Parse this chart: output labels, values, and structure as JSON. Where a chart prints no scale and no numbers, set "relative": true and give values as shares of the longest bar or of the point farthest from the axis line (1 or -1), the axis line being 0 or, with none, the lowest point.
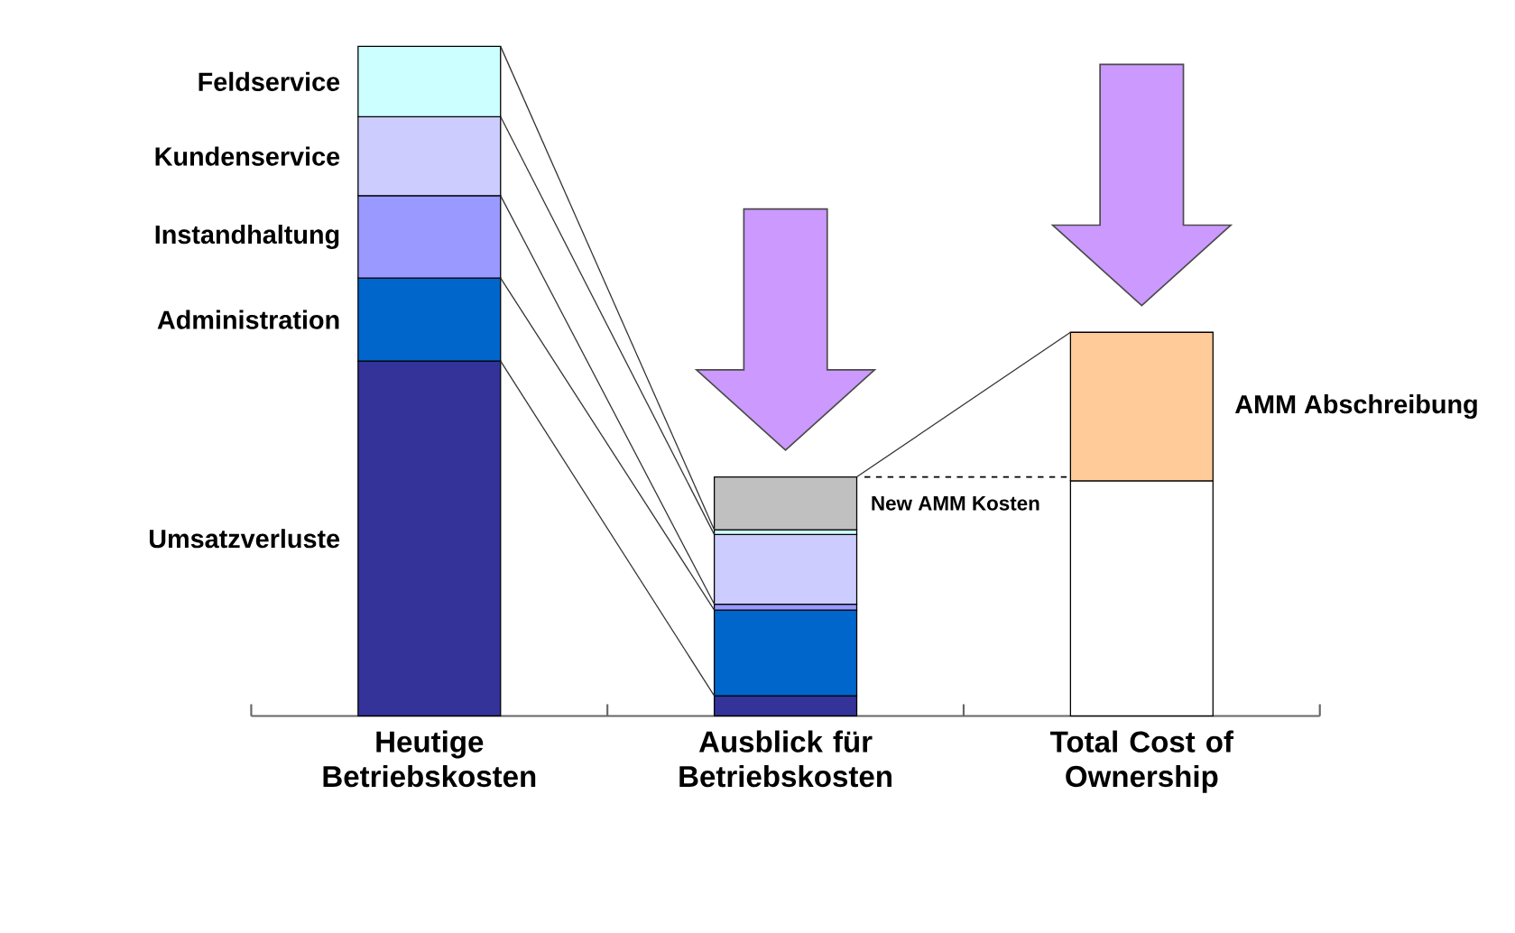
{
  "chart_data": {
    "type": "bar",
    "stacked": true,
    "relative": true,
    "categories": [
      "Heutige Betriebskosten",
      "Ausblick für Betriebskosten",
      "Total Cost of Ownership"
    ],
    "series": [
      {
        "name": "Umsatzverluste",
        "color": "#333399",
        "values": [
          0.53,
          0.03,
          null
        ]
      },
      {
        "name": "Administration",
        "color": "#0066cc",
        "values": [
          0.124,
          0.128,
          null
        ]
      },
      {
        "name": "Instandhaltung",
        "color": "#9999ff",
        "values": [
          0.123,
          0.009,
          null
        ]
      },
      {
        "name": "Kundenservice",
        "color": "#ccccff",
        "values": [
          0.118,
          0.104,
          null
        ]
      },
      {
        "name": "Feldservice",
        "color": "#ccffff",
        "values": [
          0.105,
          0.007,
          null
        ]
      },
      {
        "name": "New AMM Kosten",
        "color": "#c0c0c0",
        "values": [
          null,
          0.079,
          null
        ]
      },
      {
        "color": "#ffffff",
        "values": [
          null,
          null,
          0.351
        ]
      },
      {
        "name": "AMM Abschreibung",
        "color": "#ffcc99",
        "values": [
          null,
          null,
          0.222
        ]
      }
    ]
  }
}
